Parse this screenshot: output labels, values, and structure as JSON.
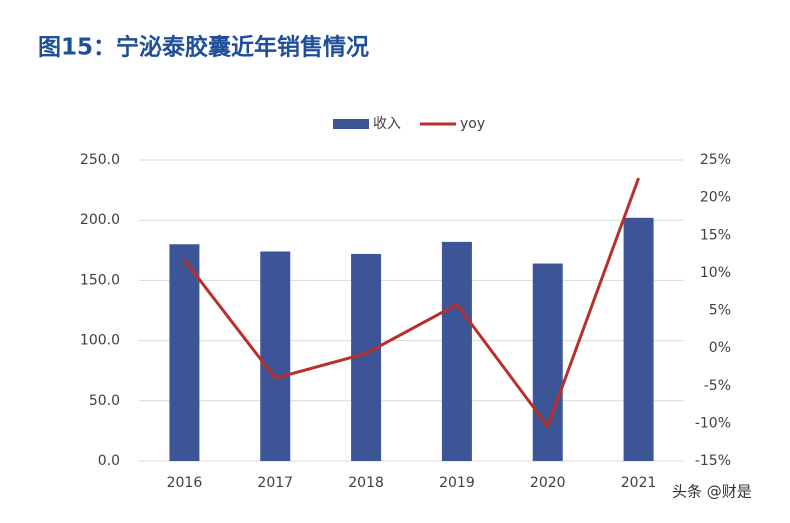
{
  "chart_data": {
    "type": "bar_line",
    "title": "图15：宁泌泰胶囊近年销售情况",
    "categories": [
      "2016",
      "2017",
      "2018",
      "2019",
      "2020",
      "2021"
    ],
    "series": [
      {
        "name": "收入",
        "type": "bar",
        "color": "#3b5596",
        "values": [
          180,
          174,
          172,
          182,
          164,
          202
        ]
      },
      {
        "name": "yoy",
        "type": "line",
        "axis": "y2",
        "color": "#b8302c",
        "values": [
          11.7,
          -4.0,
          -0.7,
          5.8,
          -10.4,
          22.6
        ]
      }
    ],
    "ylim": [
      0,
      250
    ],
    "yticks": [
      {
        "value": 0,
        "label": "0.0"
      },
      {
        "value": 50,
        "label": "50.0"
      },
      {
        "value": 100,
        "label": "100.0"
      },
      {
        "value": 150,
        "label": "150.0"
      },
      {
        "value": 200,
        "label": "200.0"
      },
      {
        "value": 250,
        "label": "250.0"
      }
    ],
    "y2lim": [
      -15,
      25
    ],
    "y2ticks": [
      {
        "value": -15,
        "label": "-15%"
      },
      {
        "value": -10,
        "label": "-10%"
      },
      {
        "value": -5,
        "label": "-5%"
      },
      {
        "value": 0,
        "label": "0%"
      },
      {
        "value": 5,
        "label": "5%"
      },
      {
        "value": 10,
        "label": "10%"
      },
      {
        "value": 15,
        "label": "15%"
      },
      {
        "value": 20,
        "label": "20%"
      },
      {
        "value": 25,
        "label": "25%"
      }
    ],
    "grid": true,
    "legend": "top",
    "watermark": "头条 @财是"
  }
}
